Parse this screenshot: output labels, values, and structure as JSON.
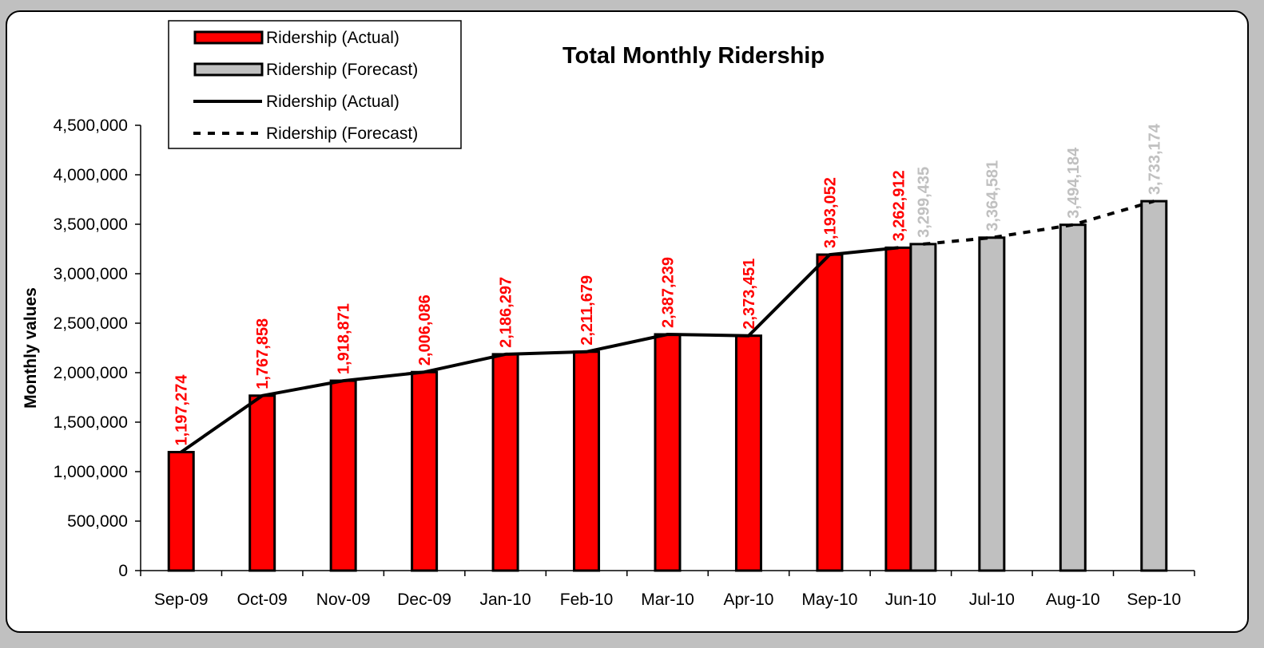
{
  "chart_data": {
    "type": "bar",
    "title": "Total Monthly Ridership",
    "ylabel": "Monthly values",
    "xlabel": "",
    "ylim": [
      0,
      4500000
    ],
    "yticks": [
      0,
      500000,
      1000000,
      1500000,
      2000000,
      2500000,
      3000000,
      3500000,
      4000000,
      4500000
    ],
    "ytick_labels": [
      "0",
      "500,000",
      "1,000,000",
      "1,500,000",
      "2,000,000",
      "2,500,000",
      "3,000,000",
      "3,500,000",
      "4,000,000",
      "4,500,000"
    ],
    "categories": [
      "Sep-09",
      "Oct-09",
      "Nov-09",
      "Dec-09",
      "Jan-10",
      "Feb-10",
      "Mar-10",
      "Apr-10",
      "May-10",
      "Jun-10",
      "Jul-10",
      "Aug-10",
      "Sep-10"
    ],
    "series": [
      {
        "name": "Ridership (Actual)",
        "kind": "bar",
        "color": "#ff0000",
        "values": [
          1197274,
          1767858,
          1918871,
          2006086,
          2186297,
          2211679,
          2387239,
          2373451,
          3193052,
          3262912,
          null,
          null,
          null
        ],
        "labels": [
          "1,197,274",
          "1,767,858",
          "1,918,871",
          "2,006,086",
          "2,186,297",
          "2,211,679",
          "2,387,239",
          "2,373,451",
          "3,193,052",
          "3,262,912",
          null,
          null,
          null
        ]
      },
      {
        "name": "Ridership (Forecast)",
        "kind": "bar",
        "color": "#c0c0c0",
        "values": [
          null,
          null,
          null,
          null,
          null,
          null,
          null,
          null,
          null,
          3299435,
          3364581,
          3494184,
          3733174
        ],
        "labels": [
          null,
          null,
          null,
          null,
          null,
          null,
          null,
          null,
          null,
          "3,299,435",
          "3,364,581",
          "3,494,184",
          "3,733,174"
        ]
      },
      {
        "name": "Ridership (Actual)",
        "kind": "line",
        "style": "solid",
        "color": "#000000",
        "values": [
          1197274,
          1767858,
          1918871,
          2006086,
          2186297,
          2211679,
          2387239,
          2373451,
          3193052,
          3262912,
          null,
          null,
          null
        ]
      },
      {
        "name": "Ridership (Forecast)",
        "kind": "line",
        "style": "dashed",
        "color": "#000000",
        "values": [
          null,
          null,
          null,
          null,
          null,
          null,
          null,
          null,
          null,
          3299435,
          3364581,
          3494184,
          3733174
        ]
      }
    ],
    "legend": {
      "placement": "top-left",
      "entries": [
        "Ridership (Actual)",
        "Ridership (Forecast)",
        "Ridership (Actual)",
        "Ridership (Forecast)"
      ]
    },
    "grid": false,
    "colors": {
      "actual": "#ff0000",
      "forecast": "#c0c0c0",
      "forecast_label": "#c0c0c0",
      "actual_label": "#ff0000"
    }
  }
}
